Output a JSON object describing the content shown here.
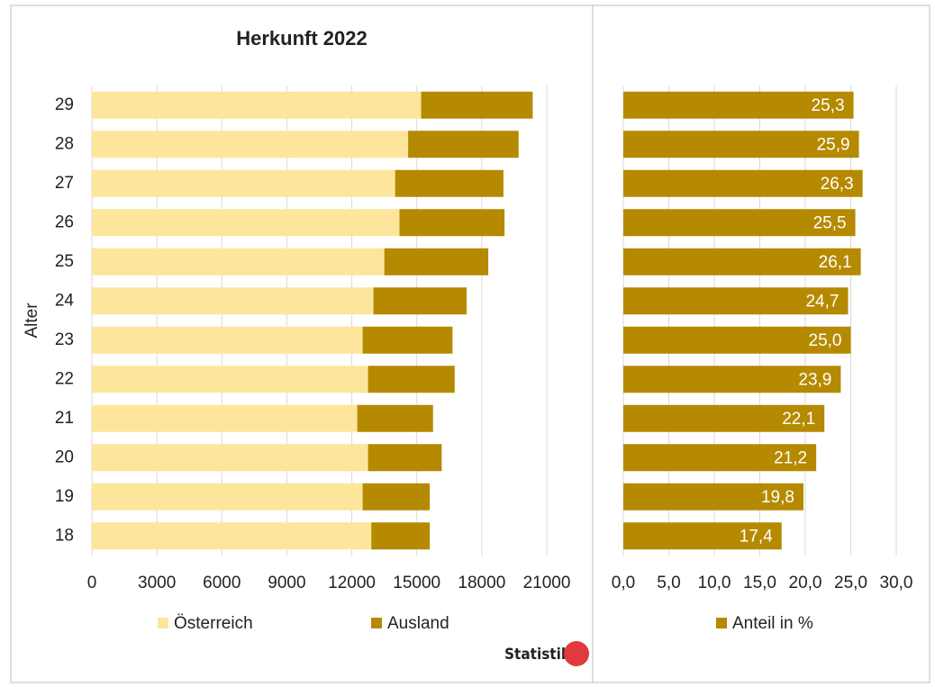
{
  "chart_data": [
    {
      "type": "stacked_bar",
      "title": "Herkunft 2022",
      "y_label": "Alter",
      "categories": [
        "29",
        "28",
        "27",
        "26",
        "25",
        "24",
        "23",
        "22",
        "21",
        "20",
        "19",
        "18"
      ],
      "series": [
        {
          "name": "Österreich",
          "color": "#fde69b",
          "values": [
            15200,
            14600,
            14000,
            14200,
            13500,
            13000,
            12500,
            12750,
            12250,
            12750,
            12500,
            12900
          ]
        },
        {
          "name": "Ausland",
          "color": "#b58a00",
          "values": [
            5150,
            5100,
            5000,
            4850,
            4800,
            4300,
            4150,
            4000,
            3500,
            3400,
            3100,
            2700
          ]
        }
      ],
      "xlim": [
        0,
        21000
      ],
      "xticks": [
        0,
        3000,
        6000,
        9000,
        12000,
        15000,
        18000,
        21000
      ],
      "grid": true,
      "legend": "bottom"
    },
    {
      "type": "bar",
      "series": [
        {
          "name": "Anteil in %",
          "color": "#b58a00",
          "values": [
            25.3,
            25.9,
            26.3,
            25.5,
            26.1,
            24.7,
            25.0,
            23.9,
            22.1,
            21.2,
            19.8,
            17.4
          ],
          "value_labels": [
            "25,3",
            "25,9",
            "26,3",
            "25,5",
            "26,1",
            "24,7",
            "25,0",
            "23,9",
            "22,1",
            "21,2",
            "19,8",
            "17,4"
          ]
        }
      ],
      "xlim": [
        0,
        30
      ],
      "xticks": [
        {
          "value": 0,
          "label": "0,0"
        },
        {
          "value": 5,
          "label": "5,0"
        },
        {
          "value": 10,
          "label": "10,0"
        },
        {
          "value": 15,
          "label": "15,0"
        },
        {
          "value": 20,
          "label": "20,0"
        },
        {
          "value": 25,
          "label": "25,0"
        },
        {
          "value": 30,
          "label": "30,0"
        }
      ],
      "grid": true,
      "legend": "bottom"
    }
  ],
  "logo": "Statistik"
}
